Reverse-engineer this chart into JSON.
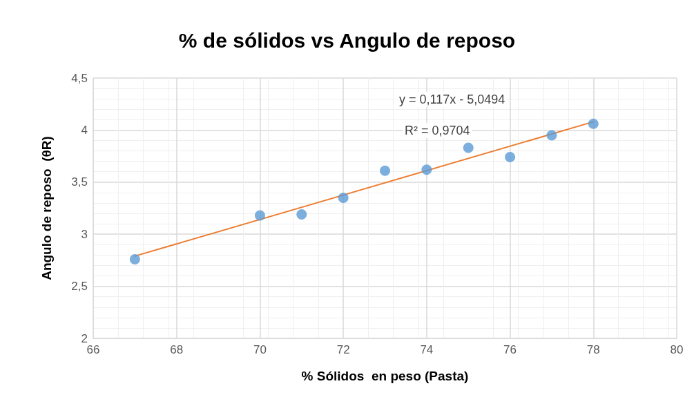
{
  "chart_data": {
    "type": "scatter",
    "title": "% de sólidos vs Angulo de reposo",
    "xlabel": "% Sólidos  en peso (Pasta)",
    "ylabel": "Angulo de reposo  (θR)",
    "series": [
      {
        "color": "#5b9bd5",
        "x": [
          67,
          70,
          71,
          72,
          73,
          74,
          75,
          76,
          77,
          78
        ],
        "values": [
          2.76,
          3.18,
          3.19,
          3.35,
          3.61,
          3.62,
          3.83,
          3.74,
          3.95,
          4.06
        ],
        "marker": "circle"
      },
      {
        "type": "line",
        "color": "#ed7d31",
        "x": [
          67,
          78
        ],
        "values": [
          2.79,
          4.08
        ],
        "marker": "none",
        "line_style": "solid"
      }
    ],
    "xlim": [
      66,
      80
    ],
    "xticks": [
      66,
      68,
      70,
      72,
      74,
      76,
      78,
      80
    ],
    "ylim": [
      2,
      4.5
    ],
    "yticks": [
      {
        "value": 2,
        "label": "2"
      },
      {
        "value": 2.5,
        "label": "2,5"
      },
      {
        "value": 3,
        "label": "3"
      },
      {
        "value": 3.5,
        "label": "3,5"
      },
      {
        "value": 4,
        "label": "4"
      },
      {
        "value": 4.5,
        "label": "4,5"
      }
    ],
    "annotations": [
      "y = 0,117x - 5,0494",
      "R² = 0,9704"
    ],
    "grid": true
  }
}
